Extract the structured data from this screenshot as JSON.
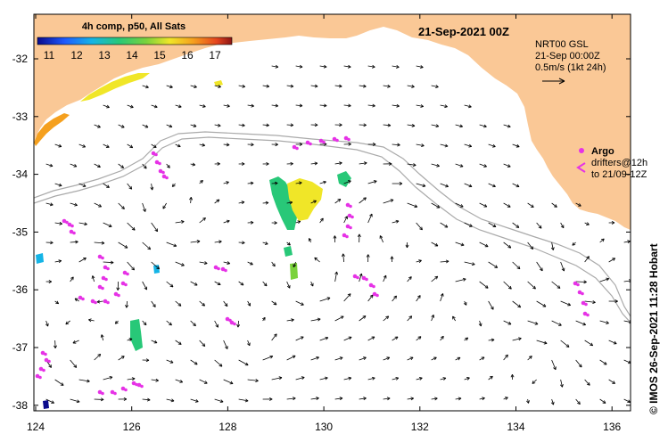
{
  "title": {
    "date": "21-Sep-2021 00Z",
    "colorbar_label": "4h comp, p50, All Sats"
  },
  "colorbar": {
    "ticks": [
      "11",
      "12",
      "13",
      "14",
      "15",
      "16",
      "17"
    ],
    "colors": [
      "#0a0a8c",
      "#1e5aff",
      "#14b4e6",
      "#28c878",
      "#7ad23c",
      "#f0e628",
      "#f5a01e",
      "#e6461e",
      "#8c1414"
    ]
  },
  "altimetry": {
    "line1": "NRT00 GSL",
    "line2": "21-Sep 00:00Z",
    "line3": "0.5m/s (1kt 24h)"
  },
  "argo": {
    "label": "Argo",
    "line2": "drifters@12h",
    "line3": "to 21/09-12Z",
    "color": "#e632e6"
  },
  "axes": {
    "x_ticks": [
      "124",
      "126",
      "128",
      "130",
      "132",
      "134",
      "136"
    ],
    "y_ticks": [
      "-32",
      "-33",
      "-34",
      "-35",
      "-36",
      "-37",
      "-38"
    ]
  },
  "credit": "© IMOS 26-Sep-2021 11:28 Hobart",
  "colors": {
    "land": "#fac896",
    "shelf_line": "#aaaaaa",
    "arrow": "#000000"
  }
}
